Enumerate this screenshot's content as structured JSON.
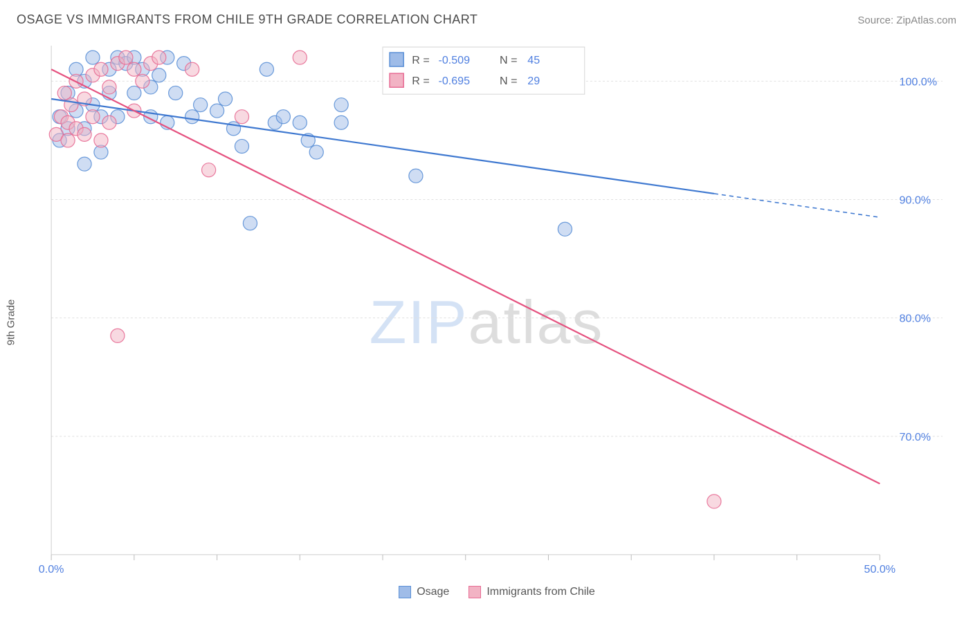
{
  "title": "OSAGE VS IMMIGRANTS FROM CHILE 9TH GRADE CORRELATION CHART",
  "source_label": "Source:",
  "source_name": "ZipAtlas.com",
  "ylabel": "9th Grade",
  "watermark": {
    "z": "ZIP",
    "rest": "atlas"
  },
  "chart": {
    "type": "scatter",
    "xlim": [
      0,
      50
    ],
    "ylim": [
      60,
      103
    ],
    "xtick_labels": [
      "0.0%",
      "50.0%"
    ],
    "xtick_positions": [
      0,
      50
    ],
    "xtick_minor": [
      5,
      10,
      15,
      20,
      25,
      30,
      35,
      40,
      45
    ],
    "ytick_labels": [
      "70.0%",
      "80.0%",
      "90.0%",
      "100.0%"
    ],
    "ytick_positions": [
      70,
      80,
      90,
      100
    ],
    "grid_color": "#e0e0e0",
    "background_color": "#ffffff",
    "marker_radius": 10,
    "marker_opacity": 0.5,
    "line_width": 2.2,
    "series": [
      {
        "name": "Osage",
        "color_fill": "#9fbce8",
        "color_stroke": "#5a8fd6",
        "line_color": "#3e78d0",
        "R": "-0.509",
        "N": "45",
        "regression": {
          "x1": 0,
          "y1": 98.5,
          "x2": 40,
          "y2": 90.5,
          "dash_from_x": 40,
          "dash_to_x": 50,
          "dash_to_y": 88.5
        },
        "points": [
          {
            "x": 0.5,
            "y": 97
          },
          {
            "x": 0.5,
            "y": 95
          },
          {
            "x": 1,
            "y": 99
          },
          {
            "x": 1,
            "y": 96
          },
          {
            "x": 1.5,
            "y": 101
          },
          {
            "x": 1.5,
            "y": 97.5
          },
          {
            "x": 2,
            "y": 100
          },
          {
            "x": 2,
            "y": 96
          },
          {
            "x": 2.5,
            "y": 102
          },
          {
            "x": 2.5,
            "y": 98
          },
          {
            "x": 3,
            "y": 97
          },
          {
            "x": 3,
            "y": 94
          },
          {
            "x": 3.5,
            "y": 101
          },
          {
            "x": 3.5,
            "y": 99
          },
          {
            "x": 4,
            "y": 102
          },
          {
            "x": 4,
            "y": 97
          },
          {
            "x": 4.5,
            "y": 101.5
          },
          {
            "x": 5,
            "y": 102
          },
          {
            "x": 5,
            "y": 99
          },
          {
            "x": 5.5,
            "y": 101
          },
          {
            "x": 6,
            "y": 99.5
          },
          {
            "x": 6,
            "y": 97
          },
          {
            "x": 6.5,
            "y": 100.5
          },
          {
            "x": 7,
            "y": 102
          },
          {
            "x": 7,
            "y": 96.5
          },
          {
            "x": 7.5,
            "y": 99
          },
          {
            "x": 8,
            "y": 101.5
          },
          {
            "x": 8.5,
            "y": 97
          },
          {
            "x": 9,
            "y": 98
          },
          {
            "x": 10,
            "y": 97.5
          },
          {
            "x": 10.5,
            "y": 98.5
          },
          {
            "x": 11,
            "y": 96
          },
          {
            "x": 11.5,
            "y": 94.5
          },
          {
            "x": 12,
            "y": 88
          },
          {
            "x": 13,
            "y": 101
          },
          {
            "x": 13.5,
            "y": 96.5
          },
          {
            "x": 14,
            "y": 97
          },
          {
            "x": 15,
            "y": 96.5
          },
          {
            "x": 15.5,
            "y": 95
          },
          {
            "x": 16,
            "y": 94
          },
          {
            "x": 17.5,
            "y": 96.5
          },
          {
            "x": 17.5,
            "y": 98
          },
          {
            "x": 22,
            "y": 92
          },
          {
            "x": 31,
            "y": 87.5
          },
          {
            "x": 2,
            "y": 93
          }
        ]
      },
      {
        "name": "Immigrants from Chile",
        "color_fill": "#f2b3c4",
        "color_stroke": "#e76b94",
        "line_color": "#e5517f",
        "R": "-0.695",
        "N": "29",
        "regression": {
          "x1": 0,
          "y1": 101,
          "x2": 50,
          "y2": 66,
          "dash_from_x": 50,
          "dash_to_x": 50,
          "dash_to_y": 66
        },
        "points": [
          {
            "x": 0.3,
            "y": 95.5
          },
          {
            "x": 0.6,
            "y": 97
          },
          {
            "x": 0.8,
            "y": 99
          },
          {
            "x": 1,
            "y": 96.5
          },
          {
            "x": 1,
            "y": 95
          },
          {
            "x": 1.2,
            "y": 98
          },
          {
            "x": 1.5,
            "y": 100
          },
          {
            "x": 1.5,
            "y": 96
          },
          {
            "x": 2,
            "y": 98.5
          },
          {
            "x": 2,
            "y": 95.5
          },
          {
            "x": 2.5,
            "y": 100.5
          },
          {
            "x": 2.5,
            "y": 97
          },
          {
            "x": 3,
            "y": 101
          },
          {
            "x": 3,
            "y": 95
          },
          {
            "x": 3.5,
            "y": 99.5
          },
          {
            "x": 3.5,
            "y": 96.5
          },
          {
            "x": 4,
            "y": 101.5
          },
          {
            "x": 4,
            "y": 78.5
          },
          {
            "x": 4.5,
            "y": 102
          },
          {
            "x": 5,
            "y": 101
          },
          {
            "x": 5,
            "y": 97.5
          },
          {
            "x": 5.5,
            "y": 100
          },
          {
            "x": 6,
            "y": 101.5
          },
          {
            "x": 6.5,
            "y": 102
          },
          {
            "x": 8.5,
            "y": 101
          },
          {
            "x": 9.5,
            "y": 92.5
          },
          {
            "x": 11.5,
            "y": 97
          },
          {
            "x": 15,
            "y": 102
          },
          {
            "x": 40,
            "y": 64.5
          }
        ]
      }
    ]
  },
  "stats_legend": {
    "R_label": "R =",
    "N_label": "N ="
  },
  "bottom_legend": [
    {
      "label": "Osage",
      "fill": "#9fbce8",
      "stroke": "#5a8fd6"
    },
    {
      "label": "Immigrants from Chile",
      "fill": "#f2b3c4",
      "stroke": "#e76b94"
    }
  ]
}
